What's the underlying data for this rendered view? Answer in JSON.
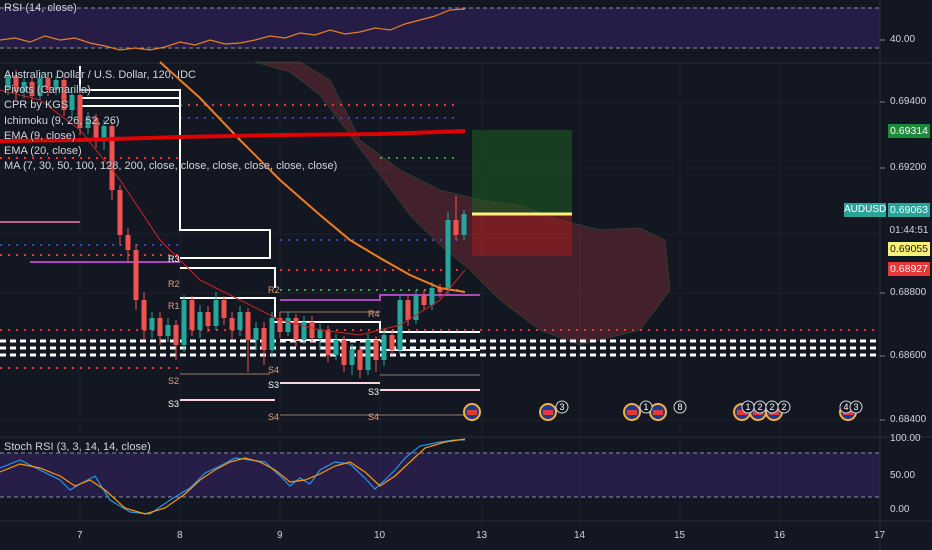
{
  "panes": {
    "rsi": {
      "title": "RSI (14, close)",
      "level_label": "40.00"
    },
    "main": {
      "legend": [
        "Australian Dollar / U.S. Dollar, 120, IDC",
        "Pivots (Camarilla)",
        "CPR by KGS",
        "Ichimoku (9, 26, 52, 26)",
        "EMA (9, close)",
        "EMA (20, close)",
        "MA (7, 30, 50, 100, 128, 200, close, close, close, close, close, close)"
      ],
      "price_axis": [
        "0.69400",
        "0.69200",
        "0.68800",
        "0.68600",
        "0.68400"
      ],
      "price_tags": {
        "symbol": "AUDUSD",
        "last": "0.69063",
        "countdown": "01:44:51",
        "tag_a": "0.69314",
        "tag_b": "0.69055",
        "tag_c": "0.68927"
      },
      "pivot_labels": {
        "r3": "R3",
        "r2": "R2",
        "r1": "R1",
        "s2": "S2",
        "s3": "S3",
        "r4": "R4",
        "s3b": "S3",
        "s4": "S4",
        "s4b": "S4",
        "s3c": "S3",
        "s4c": "S4",
        "r2b": "R2"
      },
      "event_badges": [
        "3",
        "1",
        "8",
        "1",
        "2",
        "2",
        "2",
        "4",
        "3"
      ]
    },
    "stoch": {
      "title": "Stoch RSI (3, 3, 14, 14, close)",
      "axis": [
        "100.00",
        "50.00",
        "0.00"
      ]
    }
  },
  "time_axis": [
    "7",
    "8",
    "9",
    "10",
    "13",
    "14",
    "15",
    "16",
    "17"
  ],
  "colors": {
    "background": "#131722",
    "band": "#2a1f4d",
    "up": "#26a69a",
    "down": "#ef5350",
    "ema_orange": "#f57c1f",
    "ma_red": "#e00000",
    "rsi": "#e67e22",
    "stoch_k": "#2196f3",
    "stoch_d": "#ff9800",
    "highlight": "#fff176"
  }
}
